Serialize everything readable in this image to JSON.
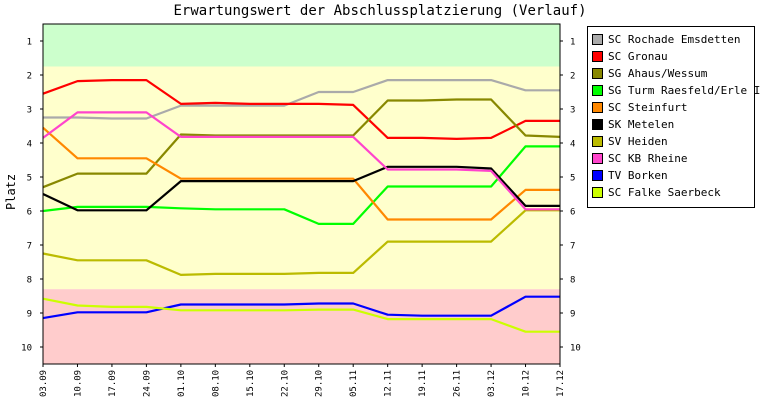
{
  "chart_data": {
    "type": "line",
    "title": "Erwartungswert der Abschlussplatzierung (Verlauf)",
    "ylabel": "Platz",
    "xlabel": "",
    "ylim": [
      0.5,
      10.5
    ],
    "y_inverted": true,
    "yticks": [
      1,
      2,
      3,
      4,
      5,
      6,
      7,
      8,
      9,
      10
    ],
    "x": [
      "03.09",
      "10.09",
      "17.09",
      "24.09",
      "01.10",
      "08.10",
      "15.10",
      "22.10",
      "29.10",
      "05.11",
      "12.11",
      "19.11",
      "26.11",
      "03.12",
      "10.12",
      "17.12"
    ],
    "bands": [
      {
        "from": 0.5,
        "to": 1.75,
        "color": "#ccffcc"
      },
      {
        "from": 1.75,
        "to": 8.3,
        "color": "#ffffcc"
      },
      {
        "from": 8.3,
        "to": 10.5,
        "color": "#ffcccc"
      }
    ],
    "grid": false,
    "legend_position": "right",
    "series": [
      {
        "name": "SC Rochade Emsdetten",
        "color": "#aaaaaa",
        "values": [
          3.25,
          3.25,
          3.28,
          3.28,
          2.9,
          2.9,
          2.9,
          2.9,
          2.5,
          2.5,
          2.15,
          2.15,
          2.15,
          2.15,
          2.45,
          2.45
        ]
      },
      {
        "name": "SC Gronau",
        "color": "#ff0000",
        "values": [
          2.55,
          2.18,
          2.15,
          2.15,
          2.85,
          2.82,
          2.85,
          2.85,
          2.85,
          2.88,
          3.85,
          3.85,
          3.88,
          3.85,
          3.35,
          3.35
        ]
      },
      {
        "name": "SG Ahaus/Wessum",
        "color": "#888800",
        "values": [
          5.3,
          4.9,
          4.9,
          4.9,
          3.75,
          3.78,
          3.78,
          3.78,
          3.78,
          3.78,
          2.75,
          2.75,
          2.72,
          2.72,
          3.78,
          3.82
        ]
      },
      {
        "name": "SG Turm Raesfeld/Erle II",
        "color": "#00ff00",
        "values": [
          6.0,
          5.88,
          5.88,
          5.88,
          5.92,
          5.95,
          5.95,
          5.95,
          6.38,
          6.38,
          5.28,
          5.28,
          5.28,
          5.28,
          4.1,
          4.1
        ]
      },
      {
        "name": "SC Steinfurt",
        "color": "#ff8800",
        "values": [
          3.55,
          4.45,
          4.45,
          4.45,
          5.05,
          5.05,
          5.05,
          5.05,
          5.05,
          5.05,
          6.25,
          6.25,
          6.25,
          6.25,
          5.38,
          5.38
        ]
      },
      {
        "name": "SK Metelen",
        "color": "#000000",
        "values": [
          5.5,
          5.98,
          5.98,
          5.98,
          5.12,
          5.12,
          5.12,
          5.12,
          5.12,
          5.12,
          4.7,
          4.7,
          4.7,
          4.75,
          5.85,
          5.85
        ]
      },
      {
        "name": "SV Heiden",
        "color": "#bbbb00",
        "values": [
          7.25,
          7.45,
          7.45,
          7.45,
          7.88,
          7.85,
          7.85,
          7.85,
          7.82,
          7.82,
          6.9,
          6.9,
          6.9,
          6.9,
          5.98,
          5.98
        ]
      },
      {
        "name": "SC KB Rheine",
        "color": "#ff44cc",
        "values": [
          3.85,
          3.1,
          3.1,
          3.1,
          3.82,
          3.82,
          3.82,
          3.82,
          3.82,
          3.82,
          4.78,
          4.78,
          4.78,
          4.82,
          5.95,
          5.95
        ]
      },
      {
        "name": "TV Borken",
        "color": "#0000ff",
        "values": [
          9.15,
          8.98,
          8.98,
          8.98,
          8.75,
          8.75,
          8.75,
          8.75,
          8.72,
          8.72,
          9.05,
          9.08,
          9.08,
          9.08,
          8.52,
          8.52
        ]
      },
      {
        "name": "SC Falke Saerbeck",
        "color": "#ccff00",
        "values": [
          8.58,
          8.78,
          8.82,
          8.82,
          8.92,
          8.92,
          8.92,
          8.92,
          8.9,
          8.9,
          9.18,
          9.18,
          9.18,
          9.18,
          9.55,
          9.55
        ]
      }
    ]
  }
}
